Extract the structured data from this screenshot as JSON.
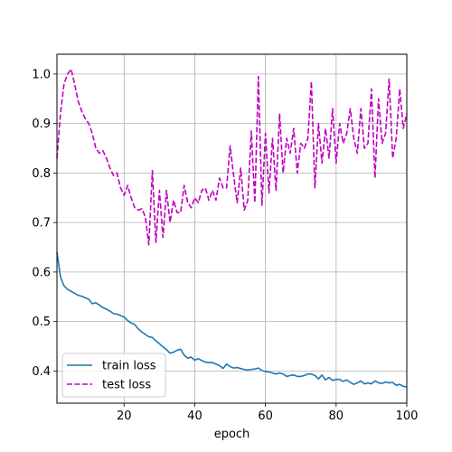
{
  "chart_data": {
    "type": "line",
    "xlabel": "epoch",
    "ylabel": "",
    "xlim": [
      1,
      100
    ],
    "ylim": [
      0.335,
      1.04
    ],
    "xticks": [
      20,
      40,
      60,
      80,
      100
    ],
    "yticks": [
      0.4,
      0.5,
      0.6,
      0.7,
      0.8,
      0.9,
      1.0
    ],
    "ytick_labels": [
      "0.4",
      "0.5",
      "0.6",
      "0.7",
      "0.8",
      "0.9",
      "1.0"
    ],
    "grid": true,
    "legend": "lower-left",
    "series": [
      {
        "name": "train loss",
        "color": "#1f77b4",
        "style": "solid",
        "x": [
          1,
          2,
          3,
          4,
          5,
          6,
          7,
          8,
          9,
          10,
          11,
          12,
          13,
          14,
          15,
          16,
          17,
          18,
          19,
          20,
          21,
          22,
          23,
          24,
          25,
          26,
          27,
          28,
          29,
          30,
          31,
          32,
          33,
          34,
          35,
          36,
          37,
          38,
          39,
          40,
          41,
          42,
          43,
          44,
          45,
          46,
          47,
          48,
          49,
          50,
          51,
          52,
          53,
          54,
          55,
          56,
          57,
          58,
          59,
          60,
          61,
          62,
          63,
          64,
          65,
          66,
          67,
          68,
          69,
          70,
          71,
          72,
          73,
          74,
          75,
          76,
          77,
          78,
          79,
          80,
          81,
          82,
          83,
          84,
          85,
          86,
          87,
          88,
          89,
          90,
          91,
          92,
          93,
          94,
          95,
          96,
          97,
          98,
          99,
          100
        ],
        "values": [
          0.64,
          0.59,
          0.572,
          0.565,
          0.561,
          0.557,
          0.553,
          0.551,
          0.548,
          0.545,
          0.536,
          0.538,
          0.533,
          0.528,
          0.525,
          0.521,
          0.516,
          0.515,
          0.512,
          0.509,
          0.502,
          0.497,
          0.494,
          0.485,
          0.479,
          0.474,
          0.469,
          0.468,
          0.461,
          0.455,
          0.449,
          0.443,
          0.436,
          0.438,
          0.442,
          0.444,
          0.432,
          0.426,
          0.428,
          0.422,
          0.425,
          0.421,
          0.418,
          0.417,
          0.417,
          0.414,
          0.411,
          0.405,
          0.414,
          0.409,
          0.406,
          0.407,
          0.405,
          0.403,
          0.402,
          0.403,
          0.404,
          0.406,
          0.401,
          0.399,
          0.398,
          0.396,
          0.394,
          0.396,
          0.394,
          0.389,
          0.391,
          0.392,
          0.389,
          0.389,
          0.391,
          0.394,
          0.394,
          0.391,
          0.384,
          0.392,
          0.382,
          0.387,
          0.381,
          0.383,
          0.383,
          0.379,
          0.382,
          0.377,
          0.373,
          0.376,
          0.38,
          0.374,
          0.376,
          0.374,
          0.38,
          0.376,
          0.375,
          0.378,
          0.376,
          0.377,
          0.371,
          0.373,
          0.369,
          0.368
        ]
      },
      {
        "name": "test loss",
        "color": "#bf00bf",
        "style": "dashed",
        "x": [
          1,
          2,
          3,
          4,
          5,
          6,
          7,
          8,
          9,
          10,
          11,
          12,
          13,
          14,
          15,
          16,
          17,
          18,
          19,
          20,
          21,
          22,
          23,
          24,
          25,
          26,
          27,
          28,
          29,
          30,
          31,
          32,
          33,
          34,
          35,
          36,
          37,
          38,
          39,
          40,
          41,
          42,
          43,
          44,
          45,
          46,
          47,
          48,
          49,
          50,
          51,
          52,
          53,
          54,
          55,
          56,
          57,
          58,
          59,
          60,
          61,
          62,
          63,
          64,
          65,
          66,
          67,
          68,
          69,
          70,
          71,
          72,
          73,
          74,
          75,
          76,
          77,
          78,
          79,
          80,
          81,
          82,
          83,
          84,
          85,
          86,
          87,
          88,
          89,
          90,
          91,
          92,
          93,
          94,
          95,
          96,
          97,
          98,
          99,
          100
        ],
        "values": [
          0.83,
          0.92,
          0.98,
          1.0,
          1.01,
          0.98,
          0.945,
          0.925,
          0.91,
          0.9,
          0.88,
          0.85,
          0.84,
          0.845,
          0.83,
          0.81,
          0.795,
          0.8,
          0.77,
          0.755,
          0.775,
          0.75,
          0.73,
          0.725,
          0.728,
          0.712,
          0.655,
          0.805,
          0.66,
          0.765,
          0.67,
          0.765,
          0.7,
          0.745,
          0.72,
          0.72,
          0.775,
          0.74,
          0.73,
          0.75,
          0.74,
          0.765,
          0.77,
          0.745,
          0.765,
          0.745,
          0.79,
          0.77,
          0.77,
          0.855,
          0.795,
          0.74,
          0.81,
          0.725,
          0.745,
          0.885,
          0.74,
          0.995,
          0.735,
          0.88,
          0.76,
          0.87,
          0.765,
          0.92,
          0.8,
          0.87,
          0.84,
          0.89,
          0.8,
          0.86,
          0.85,
          0.87,
          0.985,
          0.77,
          0.9,
          0.82,
          0.89,
          0.83,
          0.93,
          0.82,
          0.9,
          0.86,
          0.88,
          0.93,
          0.87,
          0.84,
          0.93,
          0.85,
          0.86,
          0.97,
          0.79,
          0.95,
          0.86,
          0.88,
          0.99,
          0.83,
          0.87,
          0.97,
          0.89,
          0.92
        ]
      }
    ]
  }
}
